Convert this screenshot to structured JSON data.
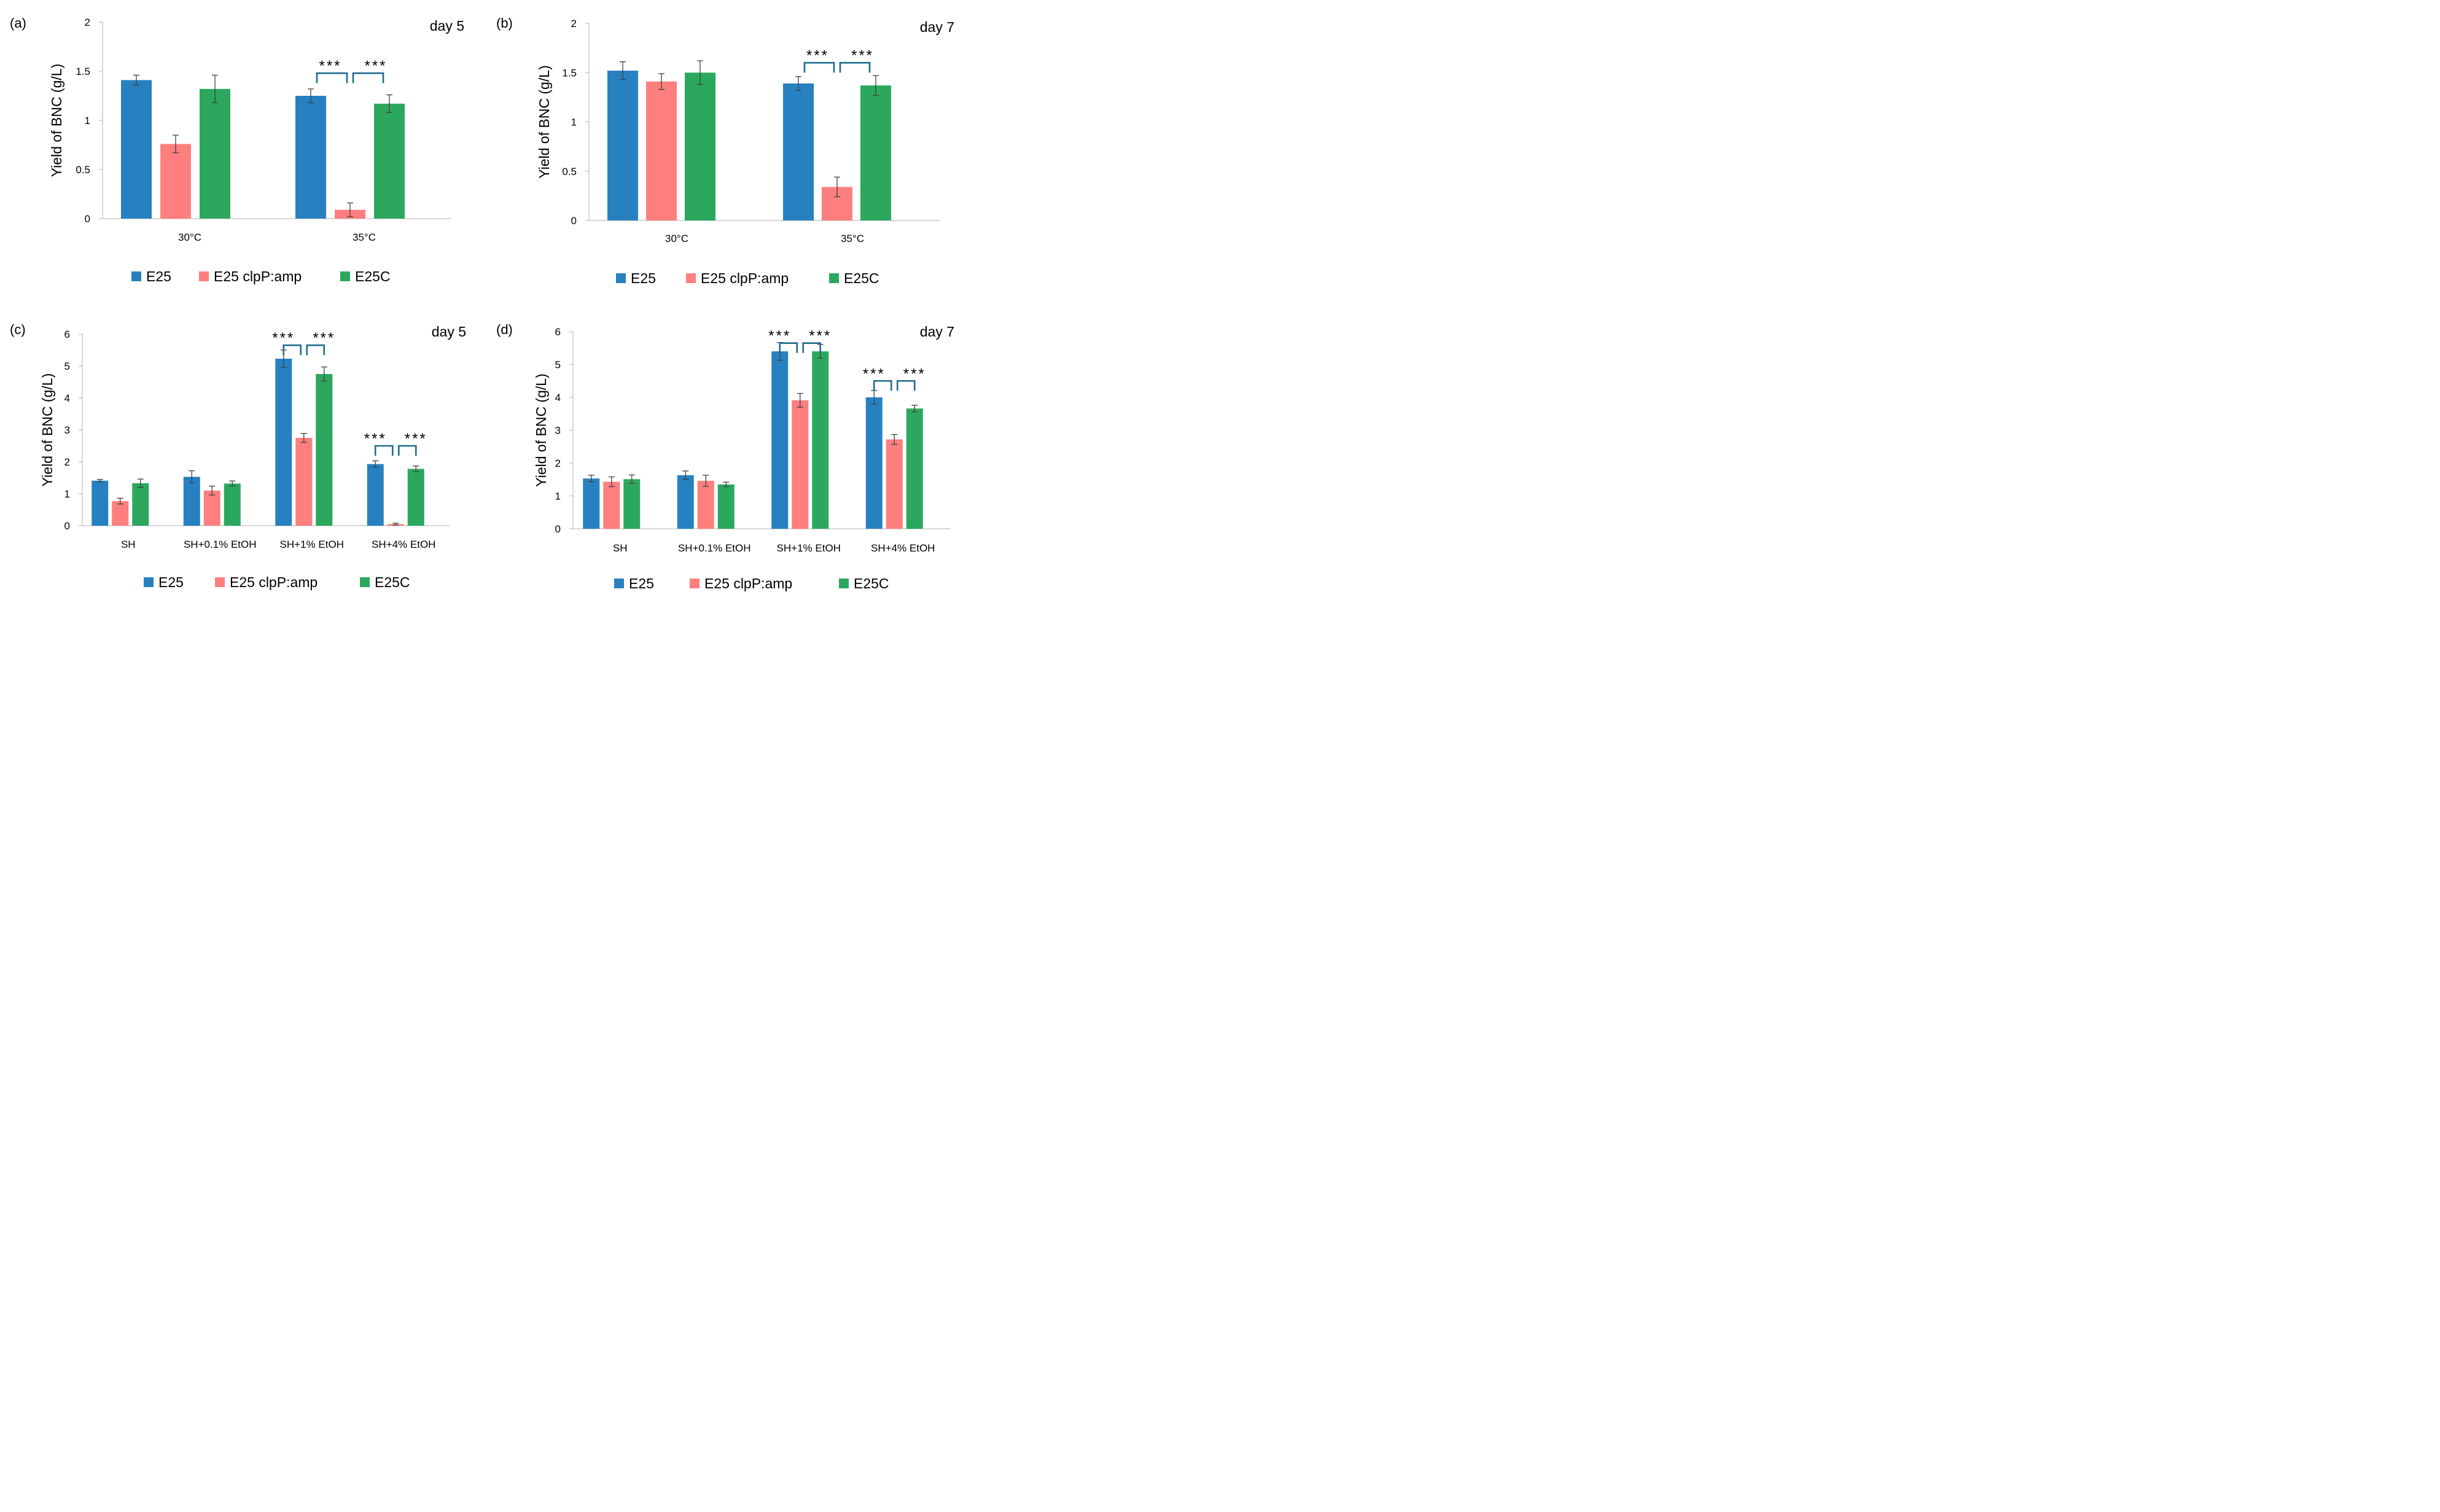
{
  "colors": {
    "E25": "#2781c1",
    "E25 clpP:amp": "#fe7f7e",
    "E25C": "#2ca85e",
    "bracket": "#1e6b8e"
  },
  "chart_data": [
    {
      "id": "a",
      "panel_label": "(a)",
      "type": "bar",
      "day_label": "day 5",
      "ylabel": "Yield of BNC (g/L)",
      "ylim": [
        0,
        2
      ],
      "yticks": [
        "0",
        "0.5",
        "1",
        "1.5",
        "2"
      ],
      "categories": [
        "30°C",
        "35°C"
      ],
      "legend": [
        "E25",
        "E25 clpP:amp",
        "E25C"
      ],
      "series": [
        {
          "name": "E25",
          "values": [
            1.41,
            1.25
          ],
          "errors": [
            0.05,
            0.07
          ]
        },
        {
          "name": "E25 clpP:amp",
          "values": [
            0.76,
            0.09
          ],
          "errors": [
            0.09,
            0.07
          ]
        },
        {
          "name": "E25C",
          "values": [
            1.32,
            1.17
          ],
          "errors": [
            0.14,
            0.09
          ]
        }
      ],
      "significance": [
        {
          "category": 1,
          "label": "***",
          "level": 1.48
        }
      ]
    },
    {
      "id": "b",
      "panel_label": "(b)",
      "type": "bar",
      "day_label": "day 7",
      "ylabel": "Yield of BNC (g/L)",
      "ylim": [
        0,
        2
      ],
      "yticks": [
        "0",
        "0.5",
        "1",
        "1.5",
        "2"
      ],
      "categories": [
        "30°C",
        "35°C"
      ],
      "legend": [
        "E25",
        "E25 clpP:amp",
        "E25C"
      ],
      "series": [
        {
          "name": "E25",
          "values": [
            1.52,
            1.39
          ],
          "errors": [
            0.09,
            0.07
          ]
        },
        {
          "name": "E25 clpP:amp",
          "values": [
            1.41,
            0.34
          ],
          "errors": [
            0.08,
            0.1
          ]
        },
        {
          "name": "E25C",
          "values": [
            1.5,
            1.37
          ],
          "errors": [
            0.12,
            0.1
          ]
        }
      ],
      "significance": [
        {
          "category": 1,
          "label": "***",
          "level": 1.6
        }
      ]
    },
    {
      "id": "c",
      "panel_label": "(c)",
      "type": "bar",
      "day_label": "day 5",
      "ylabel": "Yield of BNC (g/L)",
      "ylim": [
        0,
        6
      ],
      "yticks": [
        "0",
        "1",
        "2",
        "3",
        "4",
        "5",
        "6"
      ],
      "categories": [
        "SH",
        "SH+0.1% EtOH",
        "SH+1% EtOH",
        "SH+4% EtOH"
      ],
      "legend": [
        "E25",
        "E25 clpP:amp",
        "E25C"
      ],
      "series": [
        {
          "name": "E25",
          "values": [
            1.41,
            1.53,
            5.23,
            1.93
          ],
          "errors": [
            0.04,
            0.19,
            0.27,
            0.1
          ]
        },
        {
          "name": "E25 clpP:amp",
          "values": [
            0.77,
            1.1,
            2.75,
            0.05
          ],
          "errors": [
            0.09,
            0.14,
            0.14,
            0.03
          ]
        },
        {
          "name": "E25C",
          "values": [
            1.33,
            1.32,
            4.75,
            1.78
          ],
          "errors": [
            0.13,
            0.08,
            0.22,
            0.09
          ]
        }
      ],
      "significance": [
        {
          "category": 2,
          "label": "***",
          "level": 5.65
        },
        {
          "category": 3,
          "label": "***",
          "level": 2.5
        }
      ]
    },
    {
      "id": "d",
      "panel_label": "(d)",
      "type": "bar",
      "day_label": "day 7",
      "ylabel": "Yield of BNC (g/L)",
      "ylim": [
        0,
        6
      ],
      "yticks": [
        "0",
        "1",
        "2",
        "3",
        "4",
        "5",
        "6"
      ],
      "categories": [
        "SH",
        "SH+0.1% EtOH",
        "SH+1% EtOH",
        "SH+4% EtOH"
      ],
      "legend": [
        "E25",
        "E25 clpP:amp",
        "E25C"
      ],
      "series": [
        {
          "name": "E25",
          "values": [
            1.53,
            1.63,
            5.4,
            4.0
          ],
          "errors": [
            0.1,
            0.13,
            0.27,
            0.21
          ]
        },
        {
          "name": "E25 clpP:amp",
          "values": [
            1.43,
            1.46,
            3.91,
            2.72
          ],
          "errors": [
            0.15,
            0.17,
            0.21,
            0.15
          ]
        },
        {
          "name": "E25C",
          "values": [
            1.51,
            1.35,
            5.4,
            3.66
          ],
          "errors": [
            0.13,
            0.07,
            0.21,
            0.1
          ]
        }
      ],
      "significance": [
        {
          "category": 2,
          "label": "***",
          "level": 5.65
        },
        {
          "category": 3,
          "label": "***",
          "level": 4.5
        }
      ]
    }
  ]
}
